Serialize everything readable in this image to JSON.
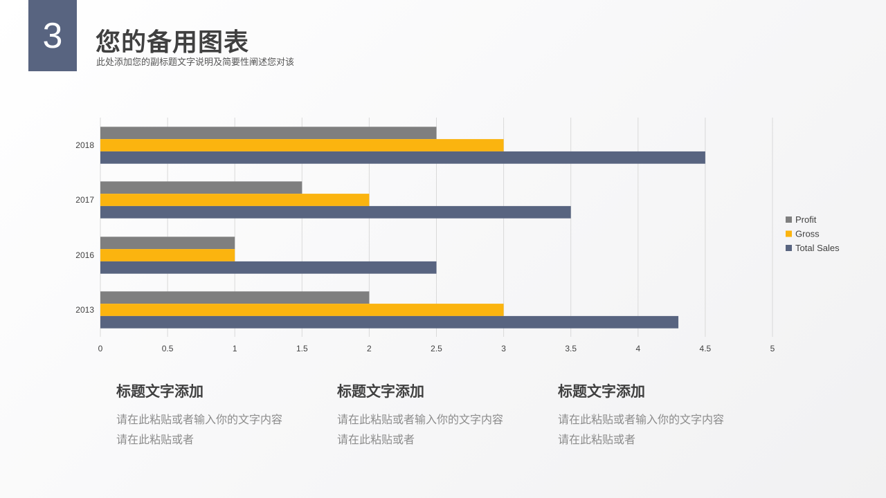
{
  "header": {
    "number": "3",
    "title": "您的备用图表",
    "subtitle": "此处添加您的副标题文字说明及简要性阐述您对该"
  },
  "colors": {
    "accent": "#586480",
    "profit": "#7f7f7f",
    "gross": "#fbb40f",
    "total_sales": "#586480",
    "grid": "#d9d9d9",
    "axis_text": "#404040"
  },
  "chart_data": {
    "type": "bar",
    "orientation": "horizontal",
    "categories": [
      "2018",
      "2017",
      "2016",
      "2013"
    ],
    "series": [
      {
        "name": "Profit",
        "color": "#7f7f7f",
        "values": [
          2.5,
          1.5,
          1,
          2
        ]
      },
      {
        "name": "Gross",
        "color": "#fbb40f",
        "values": [
          3,
          2,
          1,
          3
        ]
      },
      {
        "name": "Total Sales",
        "color": "#586480",
        "values": [
          4.5,
          3.5,
          2.5,
          4.3
        ]
      }
    ],
    "xlim": [
      0,
      5
    ],
    "xticks": [
      "0",
      "0.5",
      "1",
      "1.5",
      "2",
      "2.5",
      "3",
      "3.5",
      "4",
      "4.5",
      "5"
    ],
    "grid": true,
    "legend": "right"
  },
  "blocks": [
    {
      "title": "标题文字添加",
      "line1": "请在此粘贴或者输入你的文字内容",
      "line2": "请在此粘贴或者"
    },
    {
      "title": "标题文字添加",
      "line1": "请在此粘贴或者输入你的文字内容",
      "line2": "请在此粘贴或者"
    },
    {
      "title": "标题文字添加",
      "line1": "请在此粘贴或者输入你的文字内容",
      "line2": "请在此粘贴或者"
    }
  ]
}
